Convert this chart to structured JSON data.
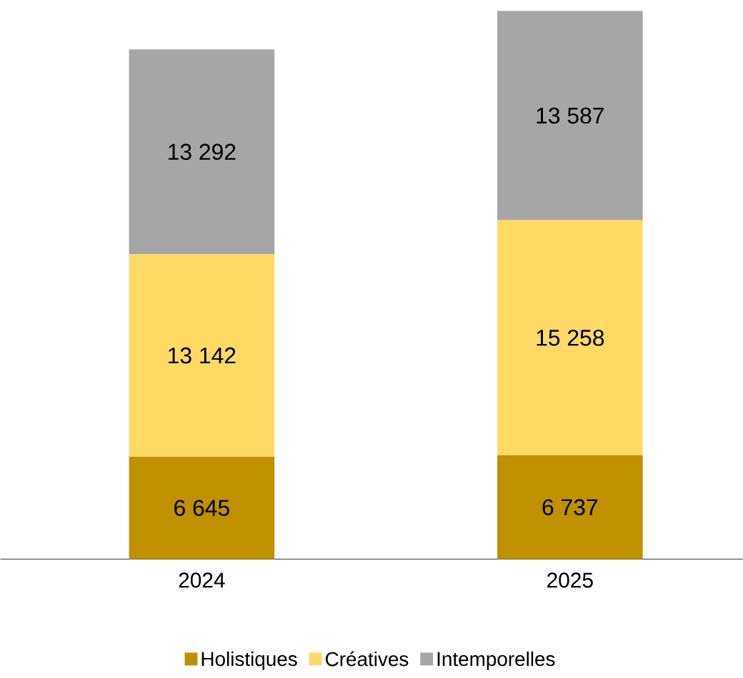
{
  "chart_data": {
    "type": "bar",
    "stacked": true,
    "categories": [
      "2024",
      "2025"
    ],
    "series": [
      {
        "name": "Holistiques",
        "color": "#bf9000",
        "values": [
          6645,
          6737
        ],
        "value_labels": [
          "6 645",
          "6 737"
        ]
      },
      {
        "name": "Créatives",
        "color": "#ffd966",
        "values": [
          13142,
          15258
        ],
        "value_labels": [
          "13 142",
          "15 258"
        ]
      },
      {
        "name": "Intemporelles",
        "color": "#a6a6a6",
        "values": [
          13292,
          13587
        ],
        "value_labels": [
          "13 292",
          "13 587"
        ]
      }
    ],
    "legend": "bottom"
  }
}
